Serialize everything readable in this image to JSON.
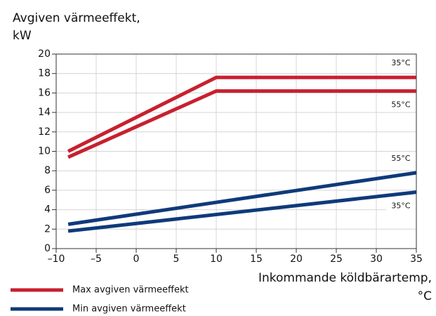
{
  "chart_data": {
    "type": "line",
    "ylabel": [
      "Avgiven värmeeffekt,",
      "kW"
    ],
    "xlabel": [
      "Inkommande köldbärartemp,",
      "°C"
    ],
    "xlim": [
      -10,
      35
    ],
    "xticks": [
      {
        "value": -10,
        "label": "–10"
      },
      {
        "value": -5,
        "label": "–5"
      },
      0,
      5,
      10,
      15,
      20,
      25,
      30,
      35
    ],
    "ylim": [
      0,
      20
    ],
    "yticks": [
      0,
      2,
      4,
      6,
      8,
      10,
      12,
      14,
      16,
      18,
      20
    ],
    "grid": true,
    "series": [
      {
        "name": "Max avgiven värmeeffekt",
        "color": "#c8202f",
        "lines": [
          {
            "label": "35°C",
            "x": [
              -8.5,
              10,
              35
            ],
            "values": [
              10,
              17.6,
              17.6
            ]
          },
          {
            "label": "55°C",
            "x": [
              -8.5,
              10,
              35
            ],
            "values": [
              9.4,
              16.2,
              16.2
            ]
          }
        ]
      },
      {
        "name": "Min avgiven värmeeffekt",
        "color": "#0f3a7a",
        "lines": [
          {
            "label": "55°C",
            "x": [
              -8.5,
              35
            ],
            "values": [
              2.5,
              7.8
            ]
          },
          {
            "label": "35°C",
            "x": [
              -8.5,
              35
            ],
            "values": [
              1.8,
              5.8
            ]
          }
        ]
      }
    ]
  }
}
